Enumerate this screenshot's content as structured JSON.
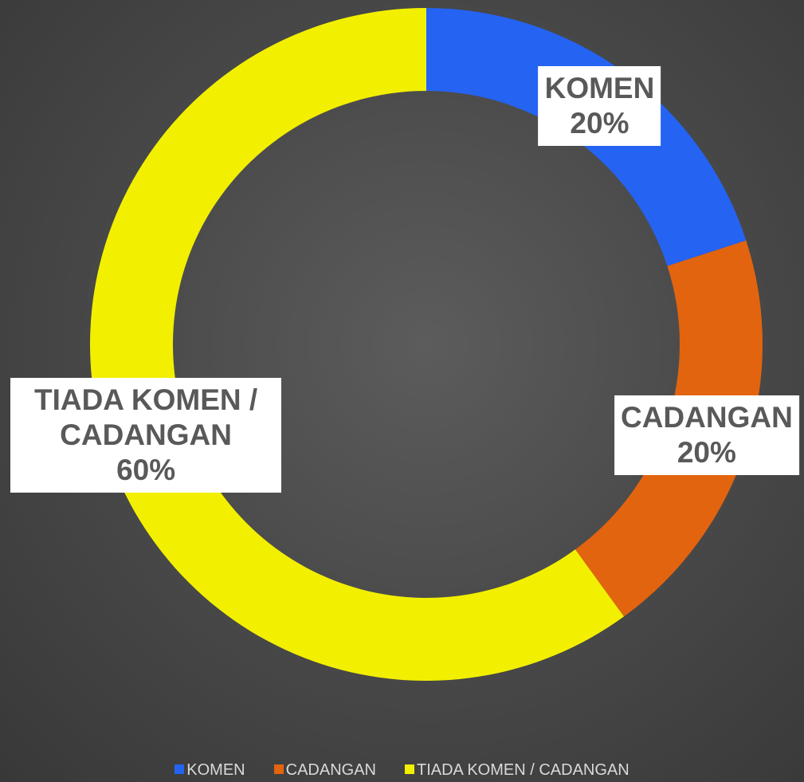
{
  "chart_data": {
    "type": "donut",
    "categories": [
      "KOMEN",
      "CADANGAN",
      "TIADA KOMEN / CADANGAN"
    ],
    "values": [
      20,
      20,
      60
    ],
    "value_labels": [
      "20%",
      "20%",
      "60%"
    ],
    "colors": [
      "#2563f2",
      "#e2640f",
      "#f2f000"
    ],
    "legend": "bottom"
  }
}
